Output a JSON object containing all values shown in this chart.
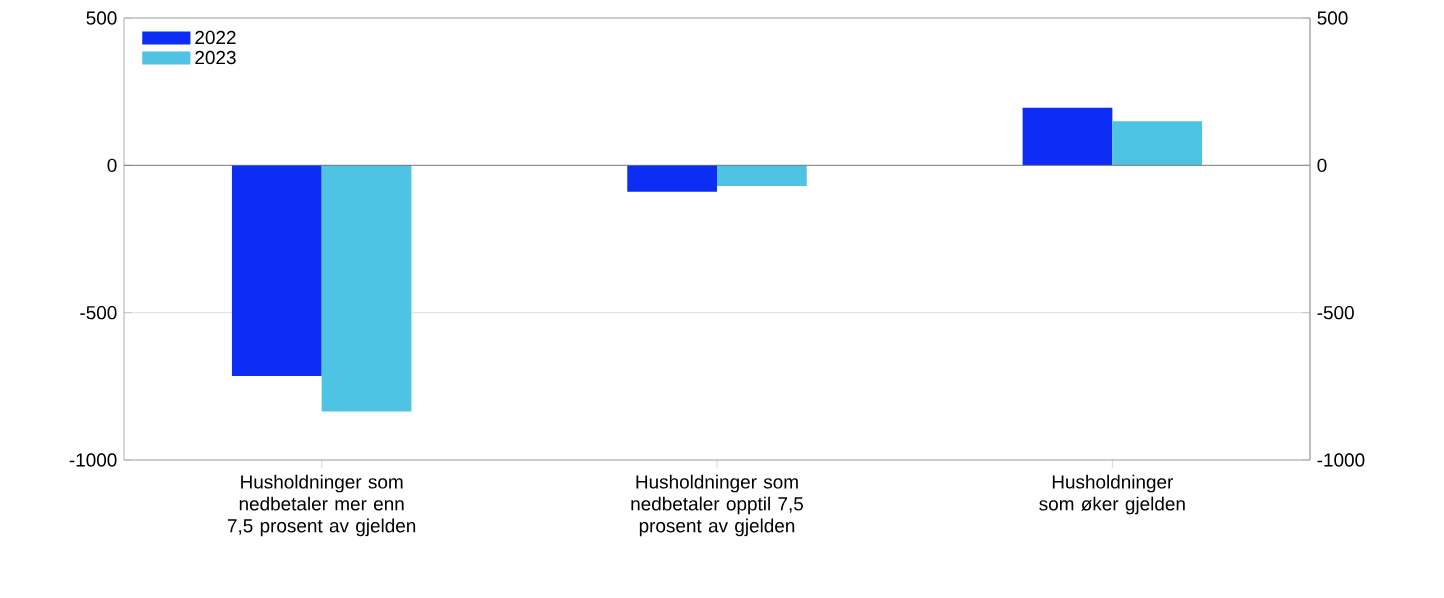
{
  "chart_data": {
    "type": "bar",
    "categories": [
      "Husholdninger som nedbetaler mer enn 7,5 prosent av gjelden",
      "Husholdninger som nedbetaler opptil 7,5 prosent av gjelden",
      "Husholdninger som øker gjelden"
    ],
    "series": [
      {
        "name": "2022",
        "color": "#0b2df4",
        "values": [
          -715,
          -90,
          195
        ]
      },
      {
        "name": "2023",
        "color": "#4fc3e3",
        "values": [
          -835,
          -70,
          150
        ]
      }
    ],
    "ylim": [
      -1000,
      500
    ],
    "yticks": [
      -1000,
      -500,
      0,
      500
    ],
    "y2lim": [
      -1000,
      500
    ],
    "y2ticks": [
      -1000,
      -500,
      0,
      500
    ],
    "grid": "y",
    "legend": "top left"
  }
}
